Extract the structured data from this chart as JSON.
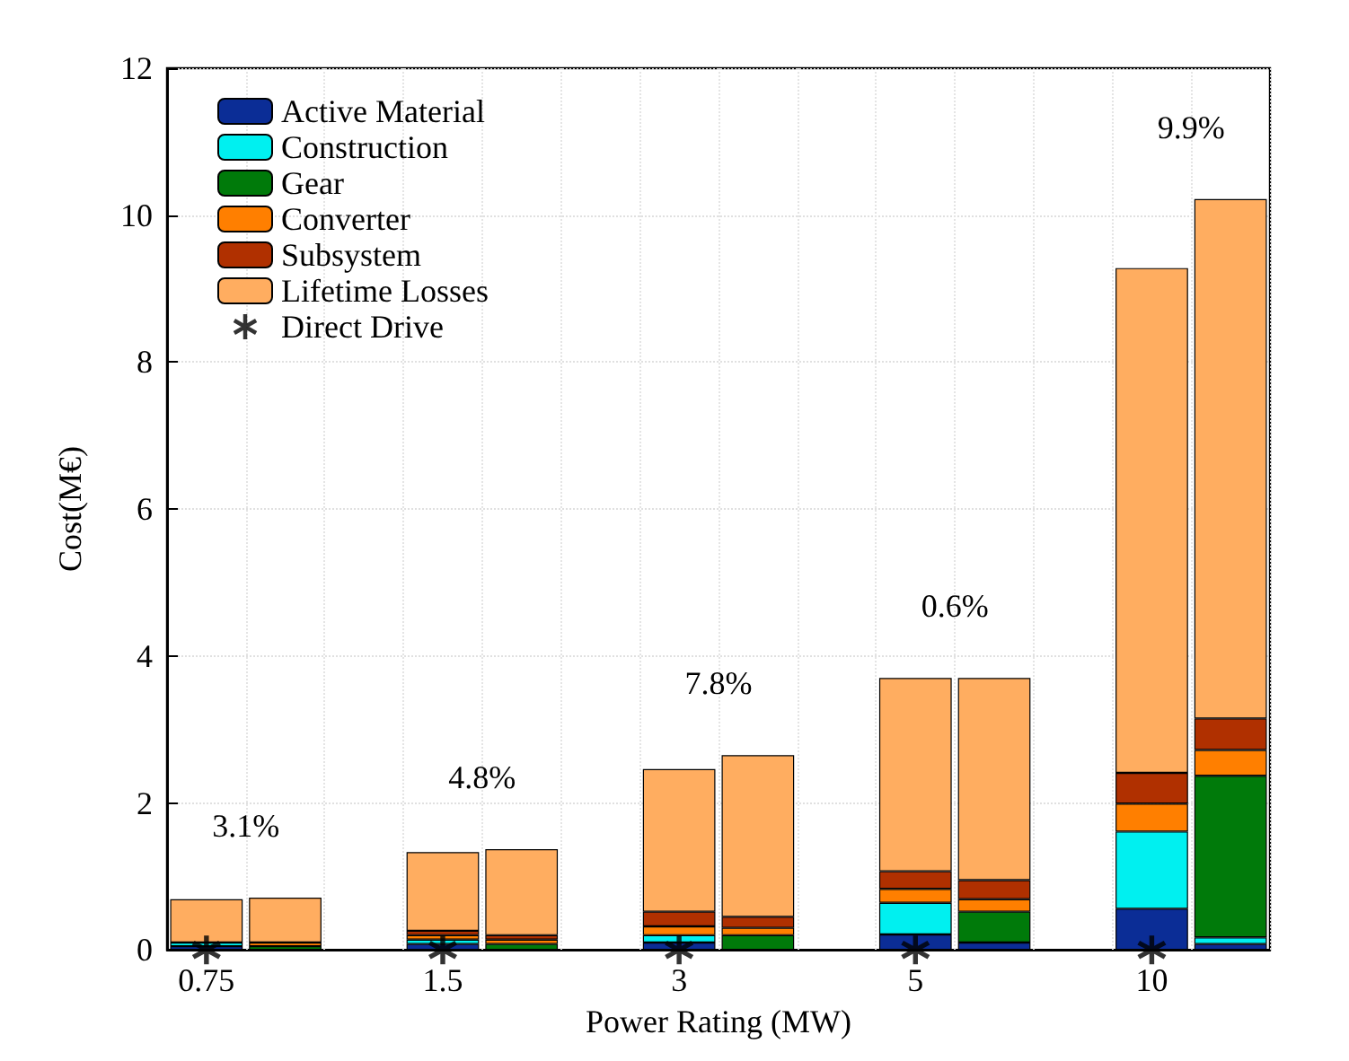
{
  "chart_data": {
    "type": "bar",
    "stacked": true,
    "xlabel": "Power Rating (MW)",
    "ylabel": "Cost(M€)",
    "categories": [
      "0.75",
      null,
      null,
      "1.5",
      null,
      null,
      "3",
      null,
      null,
      "5",
      null,
      null,
      "10",
      null
    ],
    "series": [
      {
        "name": "Active Material",
        "color": "#0b2d96",
        "values": [
          0.05,
          null,
          null,
          0.08,
          null,
          null,
          0.1,
          null,
          null,
          0.21,
          0.1,
          null,
          0.56,
          0.08
        ]
      },
      {
        "name": "Construction",
        "color": "#00f0f0",
        "values": [
          0.05,
          null,
          null,
          0.06,
          null,
          null,
          0.1,
          null,
          null,
          0.43,
          null,
          null,
          1.05,
          0.09
        ]
      },
      {
        "name": "Gear",
        "color": "#007a0a",
        "values": [
          null,
          0.05,
          null,
          null,
          0.08,
          null,
          null,
          0.2,
          null,
          null,
          0.42,
          null,
          null,
          2.2
        ]
      },
      {
        "name": "Converter",
        "color": "#ff7f00",
        "values": [
          null,
          0.05,
          null,
          0.06,
          0.06,
          null,
          0.12,
          0.1,
          null,
          0.19,
          0.17,
          null,
          0.38,
          0.35
        ]
      },
      {
        "name": "Subsystem",
        "color": "#b03000",
        "values": [
          null,
          null,
          null,
          0.06,
          0.06,
          null,
          0.2,
          0.15,
          null,
          0.24,
          0.26,
          null,
          0.42,
          0.43
        ]
      },
      {
        "name": "Lifetime Losses",
        "color": "#ffad60",
        "values": [
          0.59,
          0.61,
          null,
          1.07,
          1.17,
          null,
          1.94,
          2.2,
          null,
          2.63,
          2.75,
          null,
          6.87,
          7.07
        ]
      },
      {
        "name": "Direct Drive",
        "type": "scatter",
        "color": "#000000",
        "marker": "cross",
        "x": [
          "0.75",
          "1.5",
          "3",
          "5",
          "10"
        ],
        "values": [
          0,
          0,
          0,
          0,
          0
        ]
      }
    ],
    "ylim": [
      0,
      12
    ],
    "yticks": [
      0,
      2,
      4,
      6,
      8,
      10,
      12
    ],
    "grid": true,
    "legend": "top left",
    "annotations": [
      "3.1%",
      "4.8%",
      "7.8%",
      "0.6%",
      "9.9%"
    ]
  }
}
